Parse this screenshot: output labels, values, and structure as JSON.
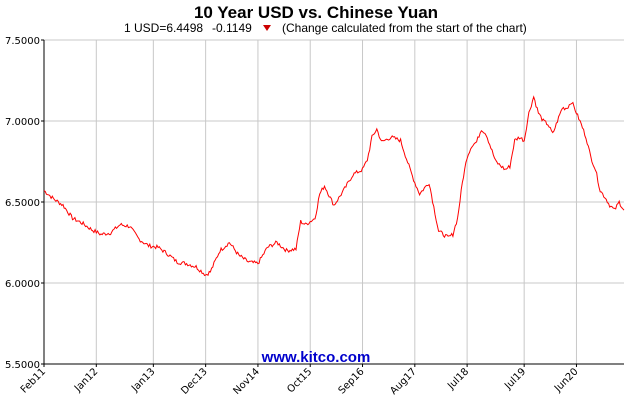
{
  "chart_data": {
    "type": "line",
    "title": "10 Year USD vs. Chinese Yuan",
    "subtitle": {
      "quote": "1 USD=6.4498",
      "change": "-0.1149",
      "note": "(Change calculated from the start of the chart)"
    },
    "watermark": "www.kitco.com",
    "ylim": [
      5.5,
      7.5
    ],
    "yticks": [
      "7.5000",
      "7.0000",
      "6.5000",
      "6.0000",
      "5.5000"
    ],
    "ytick_values": [
      7.5,
      7.0,
      6.5,
      6.0,
      5.5
    ],
    "xlim": [
      "2011-02",
      "2021-04"
    ],
    "xticks": [
      {
        "label": "Feb11",
        "date": "2011-02"
      },
      {
        "label": "Jan12",
        "date": "2012-01"
      },
      {
        "label": "Jan13",
        "date": "2013-01"
      },
      {
        "label": "Dec13",
        "date": "2013-12"
      },
      {
        "label": "Nov14",
        "date": "2014-11"
      },
      {
        "label": "Oct15",
        "date": "2015-10"
      },
      {
        "label": "Sep16",
        "date": "2016-09"
      },
      {
        "label": "Aug17",
        "date": "2017-08"
      },
      {
        "label": "Jul18",
        "date": "2018-07"
      },
      {
        "label": "Jul19",
        "date": "2019-07"
      },
      {
        "label": "Jun20",
        "date": "2020-06"
      }
    ],
    "grid": true,
    "colors": {
      "line": "#ff0000",
      "grid": "#c8c8c8",
      "axis": "#000000",
      "down_arrow": "#cc0000",
      "watermark": "#0000cc"
    },
    "series": [
      {
        "x": [
          "2011-02",
          "2011-04",
          "2011-06",
          "2011-08",
          "2011-10",
          "2011-12",
          "2012-02",
          "2012-04",
          "2012-06",
          "2012-08",
          "2012-10",
          "2012-12",
          "2013-02",
          "2013-04",
          "2013-06",
          "2013-08",
          "2013-10",
          "2013-12",
          "2014-01",
          "2014-03",
          "2014-05",
          "2014-07",
          "2014-09",
          "2014-11",
          "2015-01",
          "2015-03",
          "2015-05",
          "2015-07",
          "2015-08",
          "2015-09",
          "2015-11",
          "2015-12",
          "2016-01",
          "2016-03",
          "2016-05",
          "2016-07",
          "2016-09",
          "2016-10",
          "2016-11",
          "2016-12",
          "2017-01",
          "2017-03",
          "2017-05",
          "2017-07",
          "2017-08",
          "2017-09",
          "2017-11",
          "2018-01",
          "2018-03",
          "2018-04",
          "2018-05",
          "2018-06",
          "2018-07",
          "2018-08",
          "2018-09",
          "2018-10",
          "2018-11",
          "2019-01",
          "2019-03",
          "2019-04",
          "2019-05",
          "2019-06",
          "2019-07",
          "2019-08",
          "2019-09",
          "2019-10",
          "2019-11",
          "2019-12",
          "2020-01",
          "2020-02",
          "2020-03",
          "2020-04",
          "2020-05",
          "2020-06",
          "2020-07",
          "2020-08",
          "2020-09",
          "2020-10",
          "2020-11",
          "2020-12",
          "2021-01",
          "2021-02",
          "2021-03",
          "2021-04"
        ],
        "y": [
          6.57,
          6.52,
          6.48,
          6.4,
          6.37,
          6.33,
          6.3,
          6.31,
          6.36,
          6.35,
          6.27,
          6.23,
          6.22,
          6.18,
          6.13,
          6.12,
          6.1,
          6.05,
          6.07,
          6.2,
          6.25,
          6.17,
          6.13,
          6.12,
          6.22,
          6.25,
          6.2,
          6.21,
          6.38,
          6.36,
          6.4,
          6.55,
          6.6,
          6.48,
          6.57,
          6.67,
          6.7,
          6.76,
          6.9,
          6.95,
          6.87,
          6.9,
          6.88,
          6.7,
          6.62,
          6.55,
          6.62,
          6.32,
          6.28,
          6.3,
          6.4,
          6.62,
          6.78,
          6.85,
          6.87,
          6.95,
          6.92,
          6.75,
          6.7,
          6.72,
          6.88,
          6.9,
          6.88,
          7.05,
          7.15,
          7.05,
          7.0,
          6.98,
          6.92,
          7.0,
          7.08,
          7.08,
          7.12,
          7.05,
          6.98,
          6.9,
          6.78,
          6.7,
          6.57,
          6.53,
          6.48,
          6.45,
          6.5,
          6.45
        ]
      }
    ]
  }
}
